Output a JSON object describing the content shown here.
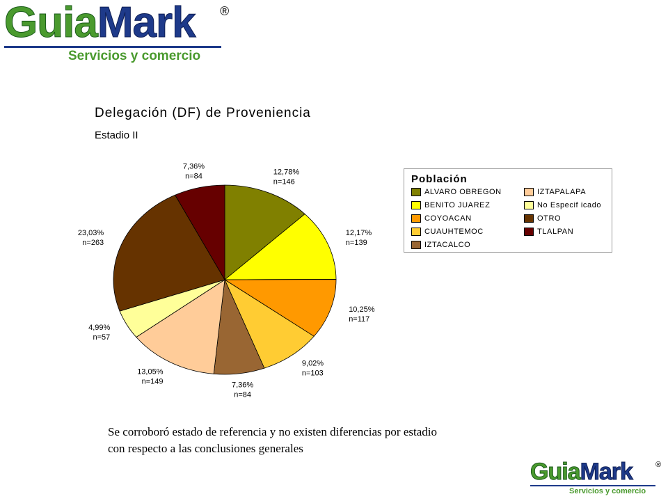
{
  "header_logo": {
    "brand_part1": "Guia",
    "brand_part2": "Mark",
    "registered": "®",
    "tagline": "Servicios y comercio"
  },
  "footer_logo": {
    "brand_part1": "Guia",
    "brand_part2": "Mark",
    "registered": "®",
    "tagline": "Servicios y comercio"
  },
  "chart_data": {
    "type": "pie",
    "title": "Delegación (DF) de Proveniencia",
    "subtitle": "Estadio II",
    "legend_title": "Población",
    "legend_position": "right",
    "slices": [
      {
        "label": "ALVARO OBREGON",
        "percent": 12.78,
        "percent_label": "12,78%",
        "n_label": "n=146",
        "color": "#808000"
      },
      {
        "label": "BENITO JUAREZ",
        "percent": 12.17,
        "percent_label": "12,17%",
        "n_label": "n=139",
        "color": "#ffff00"
      },
      {
        "label": "COYOACAN",
        "percent": 10.25,
        "percent_label": "10,25%",
        "n_label": "n=117",
        "color": "#ff9900"
      },
      {
        "label": "CUAUHTEMOC",
        "percent": 9.02,
        "percent_label": "9,02%",
        "n_label": "n=103",
        "color": "#ffcc33"
      },
      {
        "label": "IZTACALCO",
        "percent": 7.36,
        "percent_label": "7,36%",
        "n_label": "n=84",
        "color": "#996633"
      },
      {
        "label": "IZTAPALAPA",
        "percent": 13.05,
        "percent_label": "13,05%",
        "n_label": "n=149",
        "color": "#ffcc99"
      },
      {
        "label": "No Especif icado",
        "percent": 4.99,
        "percent_label": "4,99%",
        "n_label": "n=57",
        "color": "#ffff99"
      },
      {
        "label": "OTRO",
        "percent": 23.03,
        "percent_label": "23,03%",
        "n_label": "n=263",
        "color": "#663300"
      },
      {
        "label": "TLALPAN",
        "percent": 7.36,
        "percent_label": "7,36%",
        "n_label": "n=84",
        "color": "#660000"
      }
    ]
  },
  "conclusion": {
    "line1": "Se corroboró estado de referencia y no existen diferencias por estadio",
    "line2": "con respecto a las conclusiones generales"
  }
}
